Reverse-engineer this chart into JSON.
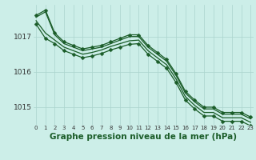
{
  "background_color": "#cceee8",
  "grid_color": "#aad4cc",
  "line_color": "#1a5c28",
  "marker_color": "#1a5c28",
  "xlabel": "Graphe pression niveau de la mer (hPa)",
  "xlabel_fontsize": 7.5,
  "ylim": [
    1014.5,
    1017.9
  ],
  "yticks": [
    1015,
    1016,
    1017
  ],
  "xlim": [
    -0.3,
    23.3
  ],
  "xticks": [
    0,
    1,
    2,
    3,
    4,
    5,
    6,
    7,
    8,
    9,
    10,
    11,
    12,
    13,
    14,
    15,
    16,
    17,
    18,
    19,
    20,
    21,
    22,
    23
  ],
  "series": [
    [
      1017.6,
      1017.75,
      1017.1,
      1016.85,
      1016.75,
      1016.65,
      1016.7,
      1016.75,
      1016.85,
      1016.95,
      1017.05,
      1017.05,
      1016.75,
      1016.55,
      1016.35,
      1015.95,
      1015.45,
      1015.2,
      1015.0,
      1015.0,
      1014.85,
      1014.85,
      1014.85,
      1014.72
    ],
    [
      1017.55,
      1017.7,
      1017.05,
      1016.8,
      1016.7,
      1016.6,
      1016.65,
      1016.7,
      1016.8,
      1016.9,
      1017.0,
      1017.0,
      1016.7,
      1016.5,
      1016.3,
      1015.9,
      1015.4,
      1015.15,
      1014.95,
      1014.95,
      1014.8,
      1014.8,
      1014.8,
      1014.67
    ],
    [
      1017.45,
      1017.1,
      1016.9,
      1016.7,
      1016.6,
      1016.5,
      1016.55,
      1016.62,
      1016.72,
      1016.8,
      1016.88,
      1016.9,
      1016.6,
      1016.4,
      1016.2,
      1015.8,
      1015.3,
      1015.05,
      1014.85,
      1014.85,
      1014.7,
      1014.7,
      1014.7,
      1014.57
    ],
    [
      1017.35,
      1016.95,
      1016.8,
      1016.6,
      1016.5,
      1016.4,
      1016.45,
      1016.52,
      1016.62,
      1016.7,
      1016.78,
      1016.8,
      1016.5,
      1016.3,
      1016.1,
      1015.7,
      1015.2,
      1014.95,
      1014.75,
      1014.75,
      1014.6,
      1014.6,
      1014.6,
      1014.47
    ]
  ],
  "marker_series": [
    0,
    3
  ],
  "linewidths": [
    0.9,
    0.9,
    0.9,
    0.9
  ]
}
